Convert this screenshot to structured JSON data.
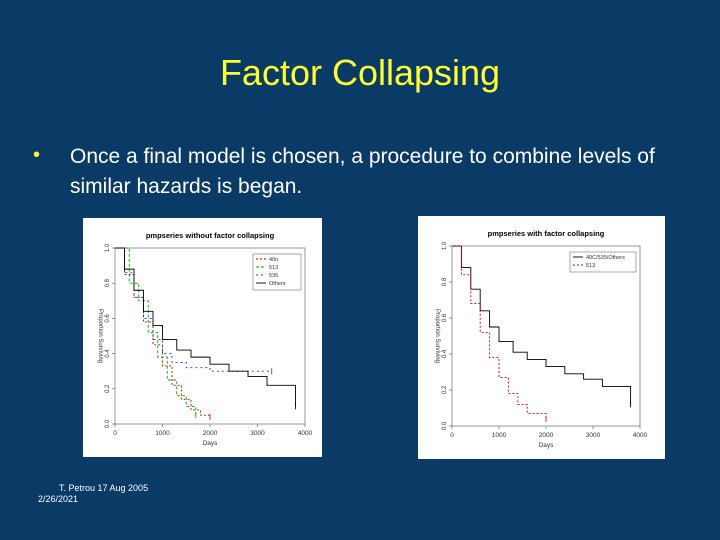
{
  "slide": {
    "title": "Factor Collapsing",
    "bullet_char": "•",
    "bullet_text": "Once a final model is chosen, a procedure to combine levels of similar hazards is began.",
    "footer_author": "T. Petrou 17 Aug 2005",
    "footer_date": "2/26/2021"
  },
  "chart_data": [
    {
      "type": "line",
      "title": "pmpseries without factor collapsing",
      "xlabel": "Days",
      "ylabel": "Proportion Surviving",
      "xlim": [
        0,
        4000
      ],
      "ylim": [
        0,
        1
      ],
      "xticks": [
        "0",
        "1000",
        "2000",
        "3000",
        "4000"
      ],
      "yticks": [
        "0.0",
        "0.2",
        "0.4",
        "0.6",
        "0.8",
        "1.0"
      ],
      "legend_position": "top-right",
      "series": [
        {
          "name": "40n",
          "color": "#cc0000",
          "dash": "2,2",
          "points": [
            [
              0,
              1
            ],
            [
              200,
              0.85
            ],
            [
              400,
              0.72
            ],
            [
              600,
              0.58
            ],
            [
              800,
              0.45
            ],
            [
              1000,
              0.33
            ],
            [
              1200,
              0.22
            ],
            [
              1400,
              0.14
            ],
            [
              1600,
              0.08
            ],
            [
              1800,
              0.05
            ],
            [
              2000,
              0.04
            ]
          ]
        },
        {
          "name": "513",
          "color": "#00aa00",
          "dash": "3,2",
          "points": [
            [
              0,
              1
            ],
            [
              300,
              0.8
            ],
            [
              500,
              0.7
            ],
            [
              700,
              0.52
            ],
            [
              900,
              0.38
            ],
            [
              1100,
              0.25
            ],
            [
              1300,
              0.16
            ],
            [
              1500,
              0.1
            ],
            [
              1700,
              0.05
            ]
          ]
        },
        {
          "name": "535",
          "color": "#3333cc",
          "dash": "2,3",
          "points": [
            [
              0,
              1
            ],
            [
              200,
              0.86
            ],
            [
              400,
              0.72
            ],
            [
              600,
              0.6
            ],
            [
              800,
              0.48
            ],
            [
              1000,
              0.4
            ],
            [
              1200,
              0.35
            ],
            [
              1500,
              0.32
            ],
            [
              2000,
              0.3
            ],
            [
              2500,
              0.3
            ],
            [
              3300,
              0.3
            ]
          ]
        },
        {
          "name": "Others",
          "color": "#000000",
          "dash": "",
          "points": [
            [
              0,
              1
            ],
            [
              200,
              0.88
            ],
            [
              400,
              0.76
            ],
            [
              600,
              0.64
            ],
            [
              800,
              0.56
            ],
            [
              1000,
              0.48
            ],
            [
              1300,
              0.42
            ],
            [
              1600,
              0.38
            ],
            [
              2000,
              0.34
            ],
            [
              2400,
              0.3
            ],
            [
              2800,
              0.27
            ],
            [
              3200,
              0.22
            ],
            [
              3800,
              0.1
            ]
          ]
        }
      ]
    },
    {
      "type": "line",
      "title": "pmpseries with factor collapsing",
      "xlabel": "Days",
      "ylabel": "Proportion Surviving",
      "xlim": [
        0,
        4000
      ],
      "ylim": [
        0,
        1
      ],
      "xticks": [
        "0",
        "1000",
        "2000",
        "3000",
        "4000"
      ],
      "yticks": [
        "0.0",
        "0.2",
        "0.4",
        "0.6",
        "0.8",
        "1.0"
      ],
      "legend_position": "top-right",
      "series": [
        {
          "name": "40C/535/Others",
          "color": "#000000",
          "dash": "",
          "points": [
            [
              0,
              1
            ],
            [
              200,
              0.88
            ],
            [
              400,
              0.76
            ],
            [
              600,
              0.64
            ],
            [
              800,
              0.55
            ],
            [
              1000,
              0.47
            ],
            [
              1300,
              0.41
            ],
            [
              1600,
              0.37
            ],
            [
              2000,
              0.33
            ],
            [
              2400,
              0.29
            ],
            [
              2800,
              0.26
            ],
            [
              3200,
              0.22
            ],
            [
              3800,
              0.12
            ]
          ]
        },
        {
          "name": "513",
          "color": "#cc0000",
          "dash": "2,2",
          "points": [
            [
              0,
              1
            ],
            [
              200,
              0.84
            ],
            [
              400,
              0.68
            ],
            [
              600,
              0.52
            ],
            [
              800,
              0.38
            ],
            [
              1000,
              0.27
            ],
            [
              1200,
              0.18
            ],
            [
              1400,
              0.12
            ],
            [
              1600,
              0.07
            ],
            [
              2000,
              0.04
            ]
          ]
        }
      ]
    }
  ]
}
